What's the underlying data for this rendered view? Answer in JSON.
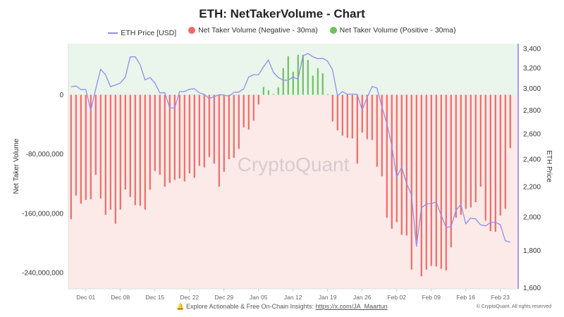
{
  "chart_data": {
    "type": "bar+line",
    "title": "ETH: NetTakerVolume - Chart",
    "legend": [
      "ETH Price [USD]",
      "Net Taker Volume (Negative - 30ma)",
      "Net Taker Volume (Positive - 30ma)"
    ],
    "legend_placement": "top",
    "ylabel_left": "Net Taker Volume",
    "ylabel_right": "ETH Price",
    "ylim_left": [
      -262000000,
      69000000
    ],
    "ylim_right": [
      1595,
      3453
    ],
    "right_scale": "log",
    "yticks_left": [
      {
        "v": 0,
        "label": "0"
      },
      {
        "v": -80000000,
        "label": "-80,000,000"
      },
      {
        "v": -160000000,
        "label": "-160,000,000"
      },
      {
        "v": -240000000,
        "label": "-240,000,000"
      }
    ],
    "yticks_right": [
      {
        "v": 3400,
        "label": "3,400"
      },
      {
        "v": 3200,
        "label": "3,200"
      },
      {
        "v": 3000,
        "label": "3,000"
      },
      {
        "v": 2800,
        "label": "2,800"
      },
      {
        "v": 2600,
        "label": "2,600"
      },
      {
        "v": 2400,
        "label": "2,400"
      },
      {
        "v": 2200,
        "label": "2,200"
      },
      {
        "v": 2000,
        "label": "2,000"
      },
      {
        "v": 1800,
        "label": "1,800"
      },
      {
        "v": 1600,
        "label": "1,600"
      }
    ],
    "xticks": [
      {
        "date": "2024-12-01",
        "label": "Dec 01"
      },
      {
        "date": "2024-12-08",
        "label": "Dec 08"
      },
      {
        "date": "2024-12-15",
        "label": "Dec 15"
      },
      {
        "date": "2024-12-22",
        "label": "Dec 22"
      },
      {
        "date": "2024-12-29",
        "label": "Dec 29"
      },
      {
        "date": "2025-01-05",
        "label": "Jan 05"
      },
      {
        "date": "2025-01-12",
        "label": "Jan 12"
      },
      {
        "date": "2025-01-19",
        "label": "Jan 19"
      },
      {
        "date": "2025-01-26",
        "label": "Jan 26"
      },
      {
        "date": "2025-02-02",
        "label": "Feb 02"
      },
      {
        "date": "2025-02-09",
        "label": "Feb 09"
      },
      {
        "date": "2025-02-16",
        "label": "Feb 16"
      },
      {
        "date": "2025-02-23",
        "label": "Feb 23"
      }
    ],
    "dates": [
      "2024-11-28",
      "2024-11-29",
      "2024-11-30",
      "2024-12-01",
      "2024-12-02",
      "2024-12-03",
      "2024-12-04",
      "2024-12-05",
      "2024-12-06",
      "2024-12-07",
      "2024-12-08",
      "2024-12-09",
      "2024-12-10",
      "2024-12-11",
      "2024-12-12",
      "2024-12-13",
      "2024-12-14",
      "2024-12-15",
      "2024-12-16",
      "2024-12-17",
      "2024-12-18",
      "2024-12-19",
      "2024-12-20",
      "2024-12-21",
      "2024-12-22",
      "2024-12-23",
      "2024-12-24",
      "2024-12-25",
      "2024-12-26",
      "2024-12-27",
      "2024-12-28",
      "2024-12-29",
      "2024-12-30",
      "2024-12-31",
      "2025-01-01",
      "2025-01-02",
      "2025-01-03",
      "2025-01-04",
      "2025-01-05",
      "2025-01-06",
      "2025-01-07",
      "2025-01-08",
      "2025-01-09",
      "2025-01-10",
      "2025-01-11",
      "2025-01-12",
      "2025-01-13",
      "2025-01-14",
      "2025-01-15",
      "2025-01-16",
      "2025-01-17",
      "2025-01-18",
      "2025-01-19",
      "2025-01-20",
      "2025-01-21",
      "2025-01-22",
      "2025-01-23",
      "2025-01-24",
      "2025-01-25",
      "2025-01-26",
      "2025-01-27",
      "2025-01-28",
      "2025-01-29",
      "2025-01-30",
      "2025-01-31",
      "2025-02-01",
      "2025-02-02",
      "2025-02-03",
      "2025-02-04",
      "2025-02-05",
      "2025-02-06",
      "2025-02-07",
      "2025-02-08",
      "2025-02-09",
      "2025-02-10",
      "2025-02-11",
      "2025-02-12",
      "2025-02-13",
      "2025-02-14",
      "2025-02-15",
      "2025-02-16",
      "2025-02-17",
      "2025-02-18",
      "2025-02-19",
      "2025-02-20",
      "2025-02-21",
      "2025-02-22",
      "2025-02-23",
      "2025-02-24",
      "2025-02-25"
    ],
    "net_taker_volume_millions": [
      -168,
      -136,
      -147,
      -142,
      -141,
      -108,
      -140,
      -162,
      -155,
      -174,
      -155,
      -128,
      -138,
      -149,
      -150,
      -155,
      -128,
      -103,
      -108,
      -124,
      -119,
      -115,
      -113,
      -117,
      -106,
      -112,
      -96,
      -98,
      -84,
      -93,
      -124,
      -104,
      -87,
      -85,
      -73,
      -44,
      -47,
      -35,
      -13,
      10.5,
      6,
      1,
      10,
      36,
      52,
      31,
      54,
      54,
      47,
      26,
      36,
      29,
      1,
      -36,
      -48,
      -55,
      -58,
      -59,
      -93,
      -51,
      -60,
      -61,
      -97,
      -110,
      -166,
      -181,
      -172,
      -189,
      -190,
      -236,
      -197,
      -245,
      -236,
      -231,
      -232,
      -235,
      -237,
      -206,
      -166,
      -162,
      -154,
      -152,
      -145,
      -124,
      -170,
      -184,
      -185,
      -163,
      -154,
      -72
    ],
    "eth_price": [
      3013,
      3023,
      2988,
      2988,
      2799,
      2992,
      3186,
      3131,
      3016,
      3032,
      3050,
      3108,
      3312,
      3314,
      3233,
      3080,
      3104,
      3050,
      2958,
      2958,
      2823,
      2818,
      2969,
      2969,
      2992,
      2996,
      2958,
      2943,
      2904,
      2922,
      2940,
      2937,
      2926,
      2962,
      2965,
      2996,
      3108,
      3131,
      3131,
      3210,
      3280,
      3156,
      3104,
      3077,
      3077,
      3108,
      3088,
      3323,
      3348,
      3314,
      3293,
      3298,
      3267,
      3179,
      2930,
      2969,
      2943,
      2946,
      2943,
      2803,
      2914,
      3016,
      3003,
      2829,
      2686,
      2505,
      2267,
      2340,
      2224,
      2144,
      1822,
      2058,
      2084,
      2087,
      2097,
      2013,
      1935,
      1940,
      2041,
      2081,
      1958,
      1993,
      1988,
      1952,
      1944,
      1965,
      1967,
      1952,
      1856,
      1847
    ],
    "colors": {
      "negative": "#ee6b67",
      "positive": "#6cc35e",
      "price": "#8f8ff0",
      "positive_bg": "#eaf5ec",
      "negative_bg": "#fbeae8",
      "right_axis": "#a89af0"
    },
    "watermark": "CryptoQuant"
  },
  "footer": {
    "text": "Explore Actionable & Free On-Chain Insights: ",
    "link": "https://x.com/JA_Maartun",
    "copyright": "© CryptoQuant. All rights reserved"
  }
}
